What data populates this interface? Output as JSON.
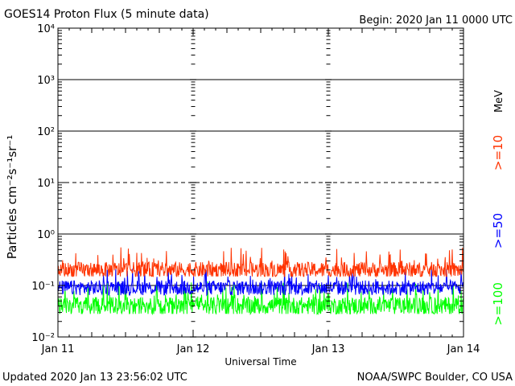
{
  "chart_data": {
    "type": "line",
    "title": "GOES14 Proton Flux (5 minute data)",
    "begin_label": "Begin: 2020 Jan 11 0000 UTC",
    "ylabel": "Particles cm⁻²s⁻¹sr⁻¹",
    "xlabel": "Universal Time",
    "yscale": "log",
    "ylim": [
      0.01,
      10000
    ],
    "y_ticks": [
      "10⁻²",
      "10⁻¹",
      "10⁰",
      "10¹",
      "10²",
      "10³",
      "10⁴"
    ],
    "x_ticks": [
      "Jan 11",
      "Jan 12",
      "Jan 13",
      "Jan 14"
    ],
    "xlim": [
      "2020-01-11 00:00",
      "2020-01-14 00:00"
    ],
    "data_end": "2020-01-13 23:56",
    "threshold_lines": [
      {
        "value": 10,
        "style": "dashed"
      },
      {
        "value": 1,
        "style": "solid"
      },
      {
        "value": 0.1,
        "style": "solid"
      }
    ],
    "unit_label": "MeV",
    "series": [
      {
        "name": ">=10",
        "color": "#ff3300",
        "typical": 0.2,
        "range": [
          0.15,
          0.55
        ]
      },
      {
        "name": ">=50",
        "color": "#0000ff",
        "typical": 0.09,
        "range": [
          0.065,
          0.22
        ]
      },
      {
        "name": ">=100",
        "color": "#00ff00",
        "typical": 0.04,
        "range": [
          0.028,
          0.12
        ]
      }
    ]
  },
  "footer": {
    "updated": "Updated 2020 Jan 13 23:56:02 UTC",
    "source": "NOAA/SWPC Boulder, CO USA"
  }
}
